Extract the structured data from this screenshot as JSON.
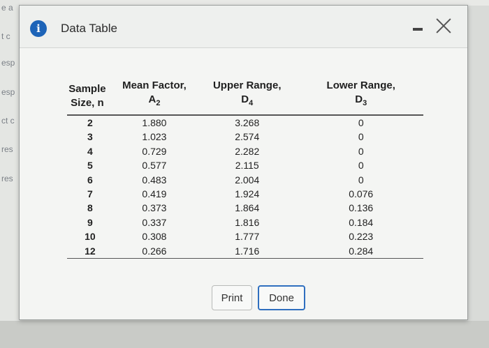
{
  "background": {
    "fragments": [
      "e a",
      "t c",
      "esp",
      "esp",
      "ct c",
      "res",
      "res"
    ]
  },
  "dialog": {
    "title": "Data Table",
    "icon": "info-icon",
    "controls": {
      "minimize": "minimize-icon",
      "close": "close-icon"
    }
  },
  "table": {
    "headers": [
      {
        "line1": "Sample",
        "line2": "Size, n"
      },
      {
        "line1": "Mean Factor,",
        "symbol": "A",
        "sub": "2"
      },
      {
        "line1": "Upper Range,",
        "symbol": "D",
        "sub": "4"
      },
      {
        "line1": "Lower Range,",
        "symbol": "D",
        "sub": "3"
      }
    ],
    "rows": [
      [
        "2",
        "1.880",
        "3.268",
        "0"
      ],
      [
        "3",
        "1.023",
        "2.574",
        "0"
      ],
      [
        "4",
        "0.729",
        "2.282",
        "0"
      ],
      [
        "5",
        "0.577",
        "2.115",
        "0"
      ],
      [
        "6",
        "0.483",
        "2.004",
        "0"
      ],
      [
        "7",
        "0.419",
        "1.924",
        "0.076"
      ],
      [
        "8",
        "0.373",
        "1.864",
        "0.136"
      ],
      [
        "9",
        "0.337",
        "1.816",
        "0.184"
      ],
      [
        "10",
        "0.308",
        "1.777",
        "0.223"
      ],
      [
        "12",
        "0.266",
        "1.716",
        "0.284"
      ]
    ]
  },
  "buttons": {
    "print": "Print",
    "done": "Done"
  },
  "colors": {
    "info_icon": "#1d64b8",
    "done_border": "#2f6fbf"
  }
}
